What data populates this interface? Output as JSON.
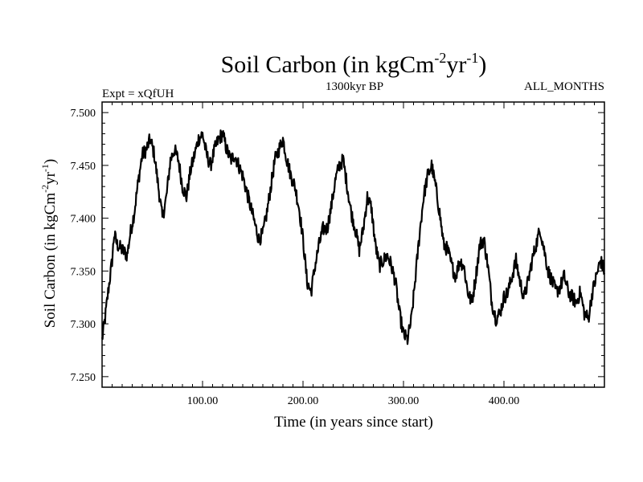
{
  "chart_data": {
    "type": "line",
    "title": "Soil Carbon (in kgCm",
    "title_sup1": "-2",
    "title_mid": "yr",
    "title_sup2": "-1",
    "title_end": ")",
    "subtitle_left": "Expt = xQfUH",
    "subtitle_center": "1300kyr BP",
    "subtitle_right": "ALL_MONTHS",
    "xlabel": "Time (in years since start)",
    "ylabel": "Soil Carbon (in kgCm",
    "ylabel_sup1": "-2",
    "ylabel_mid": "yr",
    "ylabel_sup2": "-1",
    "ylabel_end": ")",
    "xlim": [
      0,
      500
    ],
    "ylim": [
      7.24,
      7.51
    ],
    "x_major_ticks": [
      100,
      200,
      300,
      400
    ],
    "x_tick_labels": [
      "100.00",
      "200.00",
      "300.00",
      "400.00"
    ],
    "y_major_ticks": [
      7.25,
      7.3,
      7.35,
      7.4,
      7.45,
      7.5
    ],
    "y_tick_labels": [
      "7.250",
      "7.300",
      "7.350",
      "7.400",
      "7.450",
      "7.500"
    ],
    "grid": false,
    "line_color": "#000000",
    "series": [
      {
        "name": "Soil Carbon",
        "x": [
          0,
          3,
          6,
          10,
          12,
          15,
          20,
          25,
          28,
          32,
          36,
          40,
          44,
          48,
          52,
          56,
          60,
          64,
          68,
          72,
          76,
          80,
          84,
          88,
          92,
          96,
          100,
          104,
          108,
          112,
          116,
          120,
          124,
          128,
          132,
          136,
          140,
          144,
          148,
          152,
          156,
          160,
          164,
          168,
          172,
          176,
          180,
          184,
          188,
          192,
          196,
          200,
          204,
          208,
          212,
          216,
          220,
          224,
          228,
          232,
          236,
          240,
          244,
          248,
          252,
          256,
          260,
          264,
          268,
          272,
          276,
          280,
          284,
          288,
          292,
          296,
          300,
          304,
          308,
          312,
          316,
          320,
          324,
          328,
          332,
          336,
          340,
          344,
          348,
          352,
          356,
          360,
          364,
          368,
          372,
          376,
          380,
          384,
          388,
          392,
          396,
          400,
          404,
          408,
          412,
          416,
          420,
          424,
          428,
          432,
          436,
          440,
          444,
          448,
          452,
          456,
          460,
          464,
          468,
          472,
          476,
          480,
          484,
          488,
          492,
          496,
          500
        ],
        "values": [
          7.285,
          7.305,
          7.33,
          7.36,
          7.385,
          7.375,
          7.37,
          7.365,
          7.385,
          7.405,
          7.435,
          7.46,
          7.465,
          7.475,
          7.46,
          7.43,
          7.4,
          7.42,
          7.455,
          7.465,
          7.455,
          7.43,
          7.42,
          7.445,
          7.46,
          7.475,
          7.48,
          7.46,
          7.45,
          7.465,
          7.475,
          7.48,
          7.465,
          7.455,
          7.46,
          7.45,
          7.44,
          7.425,
          7.41,
          7.395,
          7.38,
          7.385,
          7.405,
          7.43,
          7.455,
          7.465,
          7.475,
          7.455,
          7.44,
          7.43,
          7.41,
          7.38,
          7.34,
          7.33,
          7.355,
          7.375,
          7.39,
          7.39,
          7.41,
          7.435,
          7.45,
          7.455,
          7.43,
          7.405,
          7.39,
          7.37,
          7.39,
          7.42,
          7.41,
          7.375,
          7.355,
          7.36,
          7.365,
          7.355,
          7.34,
          7.31,
          7.29,
          7.285,
          7.305,
          7.345,
          7.385,
          7.42,
          7.44,
          7.45,
          7.43,
          7.405,
          7.375,
          7.37,
          7.355,
          7.345,
          7.36,
          7.355,
          7.33,
          7.32,
          7.345,
          7.375,
          7.38,
          7.355,
          7.32,
          7.305,
          7.31,
          7.325,
          7.33,
          7.345,
          7.36,
          7.34,
          7.325,
          7.34,
          7.36,
          7.375,
          7.39,
          7.37,
          7.35,
          7.34,
          7.33,
          7.335,
          7.345,
          7.33,
          7.325,
          7.32,
          7.33,
          7.31,
          7.305,
          7.33,
          7.345,
          7.36,
          7.35
        ]
      }
    ]
  }
}
